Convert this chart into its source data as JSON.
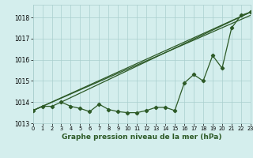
{
  "hours": [
    0,
    1,
    2,
    3,
    4,
    5,
    6,
    7,
    8,
    9,
    10,
    11,
    12,
    13,
    14,
    15,
    16,
    17,
    18,
    19,
    20,
    21,
    22,
    23
  ],
  "series_hourly": [
    1013.6,
    1013.8,
    1013.8,
    1014.0,
    1013.8,
    1013.7,
    1013.55,
    1013.9,
    1013.65,
    1013.55,
    1013.5,
    1013.5,
    1013.6,
    1013.75,
    1013.75,
    1013.6,
    1014.9,
    1015.3,
    1015.0,
    1016.2,
    1015.6,
    1017.5,
    1018.1,
    1018.25
  ],
  "straight_line1_x": [
    0,
    23
  ],
  "straight_line1_y": [
    1013.6,
    1018.25
  ],
  "straight_line2_x": [
    0,
    23
  ],
  "straight_line2_y": [
    1013.6,
    1018.1
  ],
  "straight_line3_x": [
    3,
    23
  ],
  "straight_line3_y": [
    1014.0,
    1018.25
  ],
  "ylim": [
    1013.0,
    1018.6
  ],
  "xlim": [
    0,
    23
  ],
  "yticks": [
    1013,
    1014,
    1015,
    1016,
    1017,
    1018
  ],
  "xticks": [
    0,
    1,
    2,
    3,
    4,
    5,
    6,
    7,
    8,
    9,
    10,
    11,
    12,
    13,
    14,
    15,
    16,
    17,
    18,
    19,
    20,
    21,
    22,
    23
  ],
  "bg_color": "#d4eeed",
  "grid_color": "#aacfce",
  "line_color": "#2d5a27",
  "xlabel": "Graphe pression niveau de la mer (hPa)",
  "marker": "D",
  "marker_size": 2.2,
  "line_width": 0.9
}
